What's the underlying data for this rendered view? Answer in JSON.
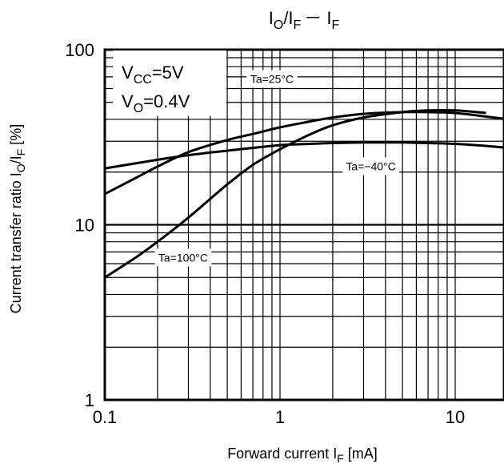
{
  "chart_data": {
    "type": "line",
    "title": {
      "base": "I",
      "sub1": "O",
      "mid": "/I",
      "sub2": "F",
      "dash": "－",
      "tail": "I",
      "sub3": "F"
    },
    "xlabel": {
      "text": "Forward current I",
      "sub": "F",
      "unit": " [mA]"
    },
    "ylabel": {
      "text": "Current transfer ratio  I",
      "sub1": "O",
      "mid": "/I",
      "sub2": "F",
      "unit": " [%]"
    },
    "x_scale": "log",
    "y_scale": "log",
    "xlim": [
      0.1,
      20
    ],
    "ylim": [
      1,
      100
    ],
    "x_ticks": [
      {
        "value": 0.1,
        "label": "0.1"
      },
      {
        "value": 1,
        "label": "1"
      },
      {
        "value": 10,
        "label": "10"
      }
    ],
    "y_ticks": [
      {
        "value": 1,
        "label": "1"
      },
      {
        "value": 10,
        "label": "10"
      },
      {
        "value": 100,
        "label": "100"
      }
    ],
    "grid": true,
    "conditions": [
      {
        "base": "V",
        "sub": "CC",
        "val": "=5V"
      },
      {
        "base": "V",
        "sub": "O",
        "val": "=0.4V"
      }
    ],
    "series": [
      {
        "name": "Ta=25°C",
        "label_at": [
          0.9,
          68
        ],
        "x": [
          0.1,
          0.15,
          0.2,
          0.3,
          0.5,
          0.7,
          1,
          1.5,
          2,
          3,
          5,
          7,
          10,
          15,
          20
        ],
        "y": [
          15,
          18.5,
          21.5,
          26,
          30.5,
          33,
          36,
          39,
          41,
          43,
          44,
          44,
          43.5,
          41.5,
          40
        ]
      },
      {
        "name": "Ta=−40°C",
        "label_at": [
          3.3,
          21.6
        ],
        "x": [
          0.1,
          0.2,
          0.3,
          0.5,
          0.7,
          1,
          1.5,
          2,
          3,
          5,
          7,
          10,
          15,
          20
        ],
        "y": [
          21,
          23.5,
          25,
          26.5,
          27.5,
          28.5,
          29,
          29.3,
          29.5,
          29.5,
          29.3,
          29,
          28.2,
          27.5
        ]
      },
      {
        "name": "Ta=100°C",
        "label_at": [
          0.28,
          6.5
        ],
        "x": [
          0.1,
          0.15,
          0.2,
          0.3,
          0.5,
          0.7,
          1,
          1.5,
          2,
          3,
          5,
          7,
          10,
          15
        ],
        "y": [
          5,
          6.5,
          8,
          11,
          17,
          22,
          27,
          33,
          37,
          41,
          44,
          45,
          45,
          43.5
        ]
      }
    ]
  }
}
